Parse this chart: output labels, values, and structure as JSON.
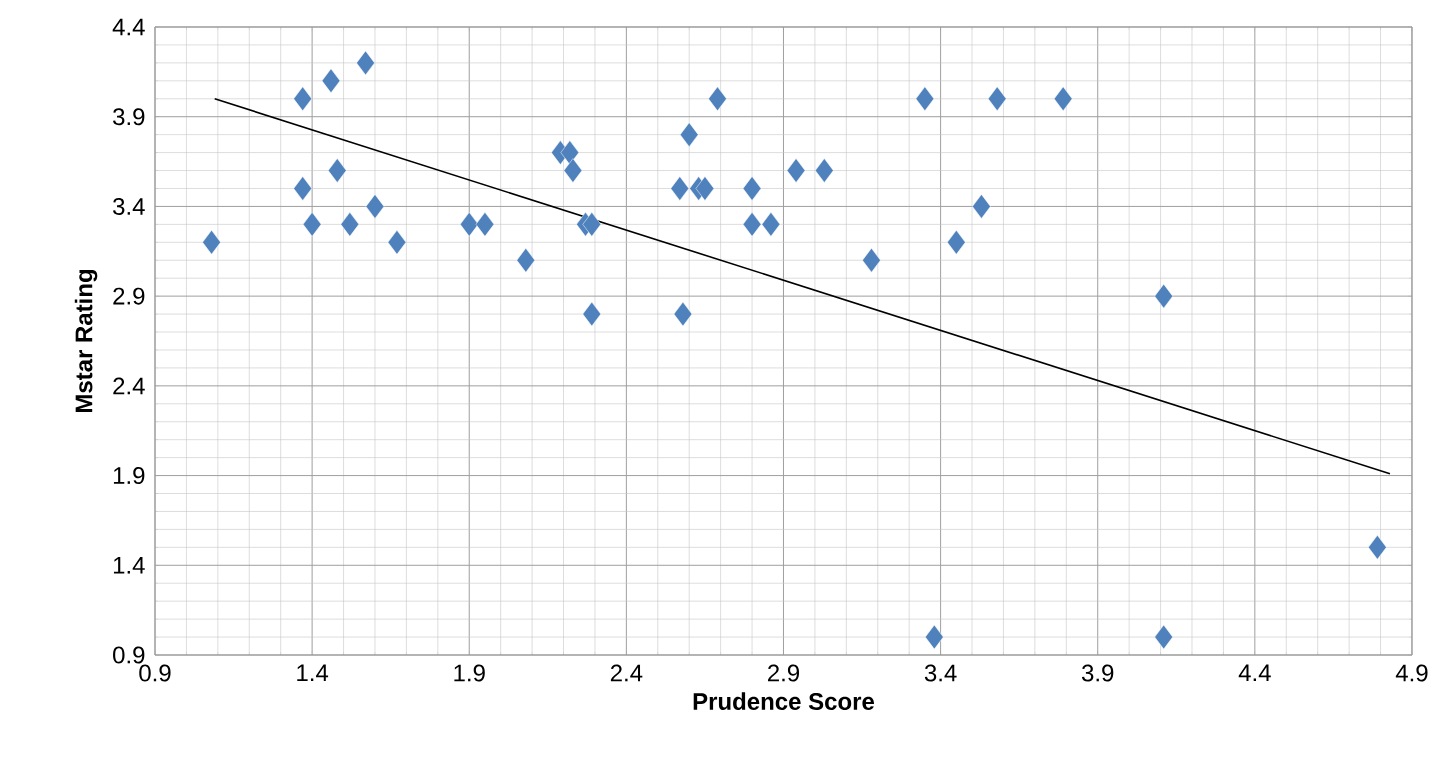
{
  "chart_data": {
    "type": "scatter",
    "xlabel": "Prudence Score",
    "ylabel": "Mstar Rating",
    "xlim": [
      0.9,
      4.9
    ],
    "ylim": [
      0.9,
      4.4
    ],
    "xticks": [
      0.9,
      1.4,
      1.9,
      2.4,
      2.9,
      3.4,
      3.9,
      4.4,
      4.9
    ],
    "yticks": [
      0.9,
      1.4,
      1.9,
      2.4,
      2.9,
      3.4,
      3.9,
      4.4
    ],
    "grid": true,
    "series": [
      {
        "marker": "diamond",
        "color": "#4f81bd",
        "x": [
          1.08,
          1.37,
          1.46,
          1.57,
          1.37,
          1.48,
          1.4,
          1.52,
          1.6,
          1.67,
          1.9,
          1.95,
          2.08,
          2.19,
          2.22,
          2.23,
          2.27,
          2.29,
          2.29,
          2.57,
          2.6,
          2.58,
          2.63,
          2.65,
          2.69,
          2.8,
          2.8,
          2.86,
          2.94,
          3.03,
          3.18,
          3.35,
          3.38,
          3.45,
          3.53,
          3.58,
          3.79,
          4.11,
          4.11,
          4.79
        ],
        "values": [
          3.2,
          4.0,
          4.1,
          4.2,
          3.5,
          3.6,
          3.3,
          3.3,
          3.4,
          3.2,
          3.3,
          3.3,
          3.1,
          3.7,
          3.7,
          3.6,
          3.3,
          3.3,
          2.8,
          3.5,
          3.8,
          2.8,
          3.5,
          3.5,
          4.0,
          3.5,
          3.3,
          3.3,
          3.6,
          3.6,
          3.1,
          4.0,
          1.0,
          3.2,
          3.4,
          4.0,
          4.0,
          2.9,
          1.0,
          1.5
        ]
      },
      {
        "type": "line",
        "marker": "none",
        "line_style": "solid",
        "color": "#000000",
        "x": [
          1.09,
          4.83
        ],
        "values": [
          4.0,
          1.91
        ]
      }
    ]
  }
}
